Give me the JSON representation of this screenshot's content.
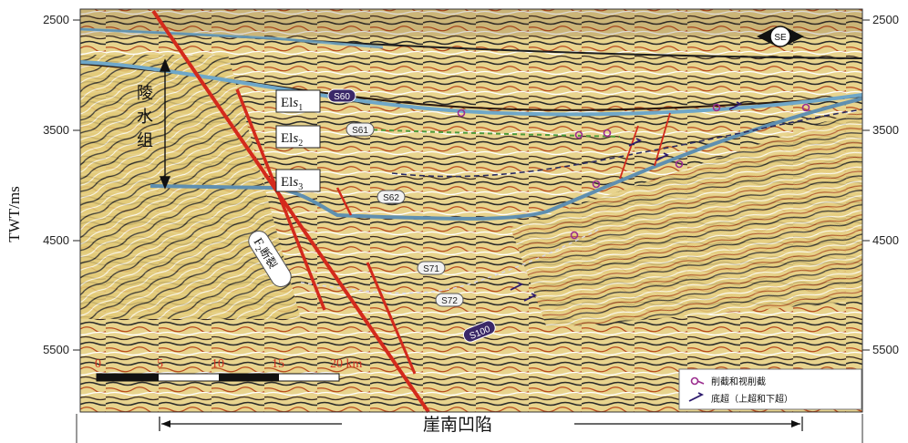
{
  "axis": {
    "y_label": "TWT/ms",
    "left_ticks": [
      "2500",
      "3500",
      "4500",
      "5500"
    ],
    "right_ticks": [
      "2500",
      "3500",
      "4500",
      "5500"
    ]
  },
  "units": [
    {
      "main": "El",
      "italic": "s",
      "sub": "1"
    },
    {
      "main": "El",
      "italic": "s",
      "sub": "2"
    },
    {
      "main": "El",
      "italic": "s",
      "sub": "3"
    }
  ],
  "formation_label": [
    "陵",
    "水",
    "组"
  ],
  "horizons": [
    "S60",
    "S61",
    "S62",
    "S71",
    "S72",
    "S100"
  ],
  "fault_label": {
    "main": "F",
    "sub": "2",
    "suffix": "断裂"
  },
  "orientation": "SE",
  "scale_bar": {
    "ticks": [
      "0",
      "5",
      "10",
      "15",
      "20 km"
    ]
  },
  "legend": {
    "truncation": "削截和视削截",
    "onlap": "底超（上超和下超）"
  },
  "basin_name": "崖南凹陷",
  "colors": {
    "fault": "#d42a1c",
    "blue_horizon": "#6fa7c8",
    "purple_marker": "#9b2d8e",
    "green_horizon": "#4f9a3a",
    "section_base": "#e6d28a"
  }
}
